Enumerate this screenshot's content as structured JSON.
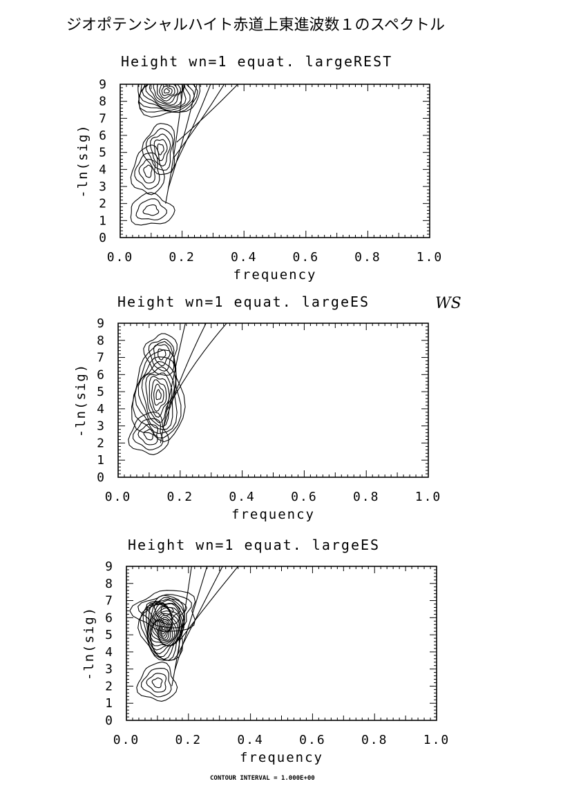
{
  "page": {
    "title": "ジオポテンシャルハイト赤道上東進波数１のスペクトル",
    "footer": "CONTOUR INTERVAL = 1.000E+00"
  },
  "chart_data": [
    {
      "type": "contour",
      "title": "Height wn=1 equat. largeREST",
      "xlabel": "frequency",
      "ylabel": "-ln(sig)",
      "xlim": [
        0.0,
        1.0
      ],
      "ylim": [
        0,
        9
      ],
      "xticks": [
        "0.0",
        "0.2",
        "0.4",
        "0.6",
        "0.8",
        "1.0"
      ],
      "yticks": [
        "0",
        "1",
        "2",
        "3",
        "4",
        "5",
        "6",
        "7",
        "8",
        "9"
      ],
      "contour_interval": 1.0,
      "peaks": [
        {
          "x": 0.15,
          "y": 8.6,
          "levels": 12,
          "rx": 0.1,
          "ry": 1.5
        },
        {
          "x": 0.13,
          "y": 5.2,
          "levels": 5,
          "rx": 0.05,
          "ry": 1.5
        },
        {
          "x": 0.09,
          "y": 3.9,
          "levels": 4,
          "rx": 0.05,
          "ry": 1.4
        },
        {
          "x": 0.1,
          "y": 1.6,
          "levels": 3,
          "rx": 0.07,
          "ry": 0.9
        }
      ],
      "ridge": {
        "levels": 5,
        "top": [
          0.16,
          9.0
        ],
        "end": [
          0.38,
          9.0
        ]
      }
    },
    {
      "type": "contour",
      "title": "Height wn=1 equat. largeES",
      "annotation": "WS",
      "xlabel": "frequency",
      "ylabel": "-ln(sig)",
      "xlim": [
        0.0,
        1.0
      ],
      "ylim": [
        0,
        9
      ],
      "xticks": [
        "0.0",
        "0.2",
        "0.4",
        "0.6",
        "0.8",
        "1.0"
      ],
      "yticks": [
        "0",
        "1",
        "2",
        "3",
        "4",
        "5",
        "6",
        "7",
        "8",
        "9"
      ],
      "contour_interval": 1.0,
      "peaks": [
        {
          "x": 0.13,
          "y": 4.8,
          "levels": 10,
          "rx": 0.08,
          "ry": 2.8
        },
        {
          "x": 0.14,
          "y": 7.2,
          "levels": 4,
          "rx": 0.05,
          "ry": 1.2
        },
        {
          "x": 0.1,
          "y": 2.5,
          "levels": 4,
          "rx": 0.06,
          "ry": 1.2
        }
      ],
      "ridge": {
        "levels": 3,
        "top": [
          0.15,
          9.0
        ],
        "end": [
          0.35,
          9.0
        ]
      }
    },
    {
      "type": "contour",
      "title": "Height wn=1 equat. largeES",
      "xlabel": "frequency",
      "ylabel": "-ln(sig)",
      "xlim": [
        0.0,
        1.0
      ],
      "ylim": [
        0,
        9
      ],
      "xticks": [
        "0.0",
        "0.2",
        "0.4",
        "0.6",
        "0.8",
        "1.0"
      ],
      "yticks": [
        "0",
        "1",
        "2",
        "3",
        "4",
        "5",
        "6",
        "7",
        "8",
        "9"
      ],
      "contour_interval": 1.0,
      "peaks": [
        {
          "x": 0.12,
          "y": 5.4,
          "levels": 18,
          "rx": 0.07,
          "ry": 1.9
        },
        {
          "x": 0.13,
          "y": 6.4,
          "levels": 5,
          "rx": 0.1,
          "ry": 1.2
        },
        {
          "x": 0.1,
          "y": 2.2,
          "levels": 4,
          "rx": 0.06,
          "ry": 1.1
        }
      ],
      "ridge": {
        "levels": 4,
        "top": [
          0.16,
          9.0
        ],
        "end": [
          0.36,
          9.0
        ]
      }
    }
  ]
}
